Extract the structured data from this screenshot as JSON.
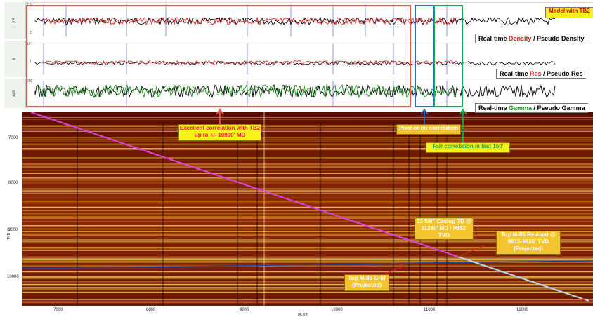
{
  "tracks": {
    "density": {
      "axis_label": "2.5",
      "tick_top": "2.5",
      "tick_bottom": "2"
    },
    "res": {
      "tick_top": "10",
      "tick_mid": "1"
    },
    "gamma": {
      "tick_top": "200"
    }
  },
  "labels": {
    "model": "Model with TB2",
    "density_prefix": "Real-time ",
    "density_word": "Density",
    "density_suffix": " / Pseudo Density",
    "res_prefix": "Real-time ",
    "res_word": "Res",
    "res_suffix": " / Pseudo Res",
    "gamma_prefix": "Real-time ",
    "gamma_word": "Gamma",
    "gamma_suffix": " /  Pseudo Gamma"
  },
  "annotations": {
    "excellent": "Excellent correlation with TB2 up to +/- 10900' MD",
    "poor": "Poor or no correlation",
    "fair": "Fair correlation in last 150'",
    "casing": "13 5/8\" Casing TD @ 11280' MD / 9552' TVD",
    "revised": "Top M-85 Revised @ 9615-9630' TVD (Projected)",
    "grid": "Top M-85 Grid (Projected)"
  },
  "section": {
    "y_axis_label": "TVD (ft)",
    "x_axis_label": "MD (ft)",
    "y_ticks": [
      "7000",
      "8000",
      "9000",
      "10000"
    ],
    "x_ticks": [
      "7000",
      "8000",
      "9000",
      "10000",
      "11000",
      "12000"
    ]
  },
  "colors": {
    "density_realtime": "#e02020",
    "pseudo": "#000000",
    "gamma_realtime": "#1a8f1a",
    "well_path": "#e040e0",
    "projected_path": "#b8d8f0",
    "marker_line": "#2c3c9c",
    "highlight_red": "#ee5555",
    "highlight_blue": "#2a6ec0",
    "highlight_green": "#18a850",
    "annotation_yellow": "#f8f21c",
    "annotation_gold": "#f4c430"
  }
}
